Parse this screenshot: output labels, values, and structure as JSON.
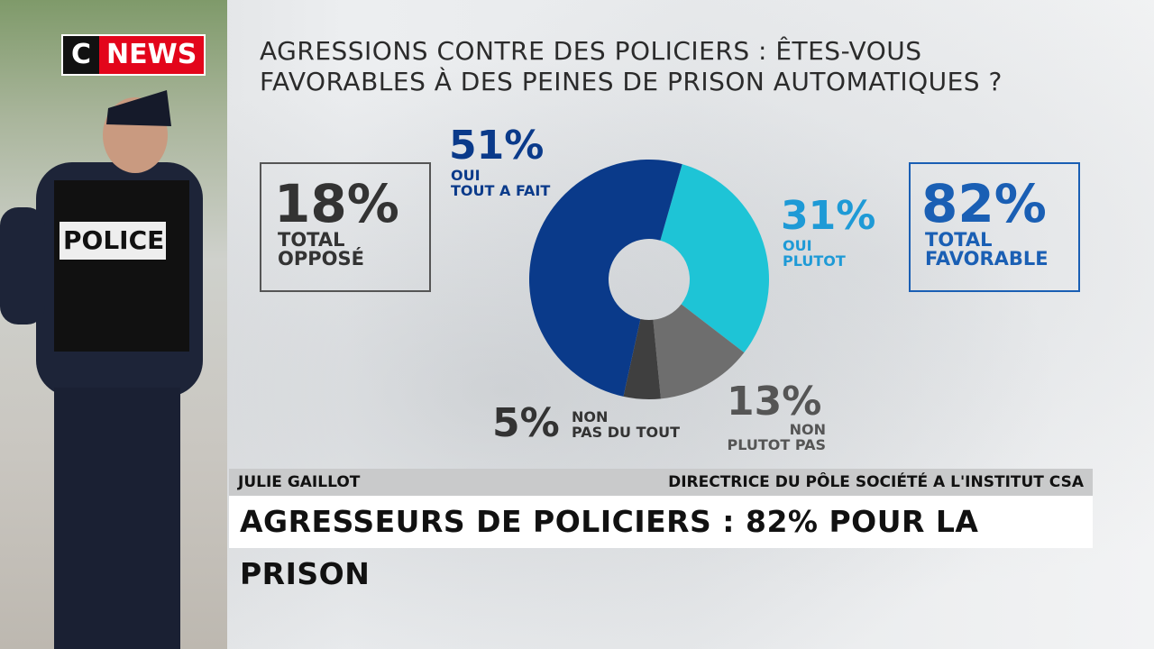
{
  "channel": {
    "logo_c": "C",
    "logo_news": "NEWS",
    "brand_color": "#e3051b"
  },
  "photo": {
    "vest_label": "POLICE"
  },
  "chart_data": {
    "type": "pie",
    "style": "donut",
    "title": "AGRESSIONS CONTRE DES POLICIERS : ÊTES-VOUS FAVORABLES À DES PEINES DE PRISON AUTOMATIQUES ?",
    "slices": [
      {
        "label": "OUI TOUT A FAIT",
        "line1": "OUI",
        "line2": "TOUT A FAIT",
        "pct_text": "51%",
        "value": 51,
        "color": "#0a3a8a"
      },
      {
        "label": "OUI PLUTOT",
        "line1": "OUI",
        "line2": "PLUTOT",
        "pct_text": "31%",
        "value": 31,
        "color": "#1ec4d6"
      },
      {
        "label": "NON PLUTOT PAS",
        "line1": "NON",
        "line2": "PLUTOT PAS",
        "pct_text": "13%",
        "value": 13,
        "color": "#6e6e6e"
      },
      {
        "label": "NON PAS DU TOUT",
        "line1": "NON",
        "line2": "PAS DU TOUT",
        "pct_text": "5%",
        "value": 5,
        "color": "#3f3f3f"
      }
    ],
    "order_clockwise": [
      "OUI PLUTOT",
      "NON PLUTOT PAS",
      "NON PAS DU TOUT",
      "OUI TOUT A FAIT"
    ],
    "totals": {
      "opposed": {
        "pct": "18%",
        "line1": "TOTAL",
        "line2": "OPPOSÉ",
        "color": "#333333"
      },
      "favorable": {
        "pct": "82%",
        "line1": "TOTAL",
        "line2": "FAVORABLE",
        "color": "#1a5fb4"
      }
    }
  },
  "lower_third": {
    "name": "JULIE GAILLOT",
    "role": "DIRECTRICE DU PÔLE SOCIÉTÉ A L'INSTITUT CSA",
    "headline": "AGRESSEURS DE POLICIERS : 82% POUR LA PRISON"
  }
}
